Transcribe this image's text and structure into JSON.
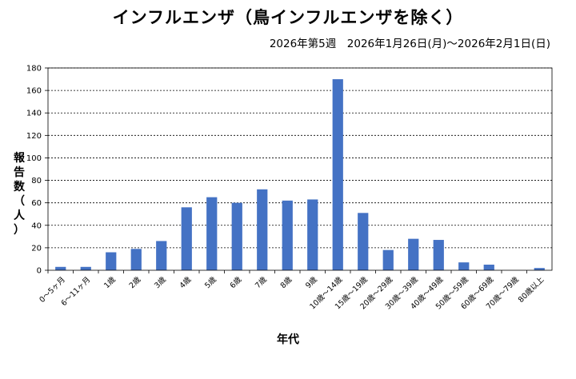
{
  "title": "インフルエンザ（鳥インフルエンザを除く）",
  "subtitle": "2026年第5週　2026年1月26日(月)〜2026年2月1日(日)",
  "chart_data": {
    "type": "bar",
    "categories": [
      "0〜5ヶ月",
      "6〜11ヶ月",
      "1歳",
      "2歳",
      "3歳",
      "4歳",
      "5歳",
      "6歳",
      "7歳",
      "8歳",
      "9歳",
      "10歳〜14歳",
      "15歳〜19歳",
      "20歳〜29歳",
      "30歳〜39歳",
      "40歳〜49歳",
      "50歳〜59歳",
      "60歳〜69歳",
      "70歳〜79歳",
      "80歳以上"
    ],
    "values": [
      3,
      3,
      16,
      19,
      26,
      56,
      65,
      60,
      72,
      62,
      63,
      170,
      51,
      18,
      28,
      27,
      7,
      5,
      0,
      2
    ],
    "xlabel": "年代",
    "ylabel": "報告数（人）",
    "ylabel_chars": [
      "報",
      "告",
      "数",
      "（",
      "人",
      "）"
    ],
    "yticks": [
      0,
      20,
      40,
      60,
      80,
      100,
      120,
      140,
      160,
      180
    ],
    "ylim": [
      0,
      180
    ],
    "grid": true,
    "bar_color": "#4472c4"
  }
}
